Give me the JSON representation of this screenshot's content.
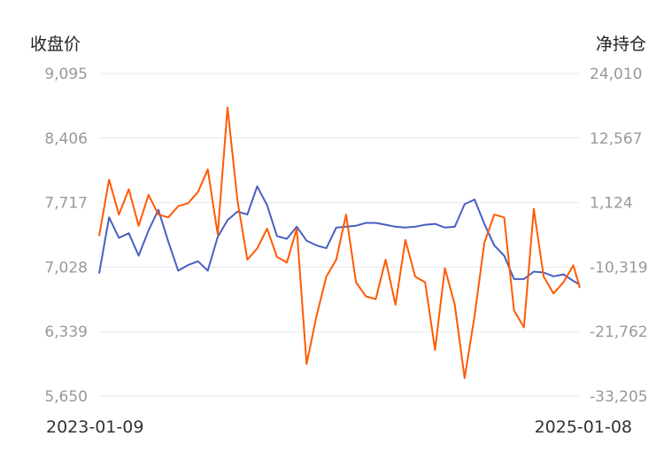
{
  "chart_data": {
    "type": "line",
    "title": "",
    "x_range": [
      "2023-01-09",
      "2025-01-08"
    ],
    "x_tick_labels": [
      "2023-01-09",
      "2025-01-08"
    ],
    "y_left": {
      "label": "收盘价",
      "ylim": [
        5650,
        9095
      ],
      "ticks": [
        "9,095",
        "8,406",
        "7,717",
        "7,028",
        "6,339",
        "5,650"
      ],
      "tick_values": [
        9095,
        8406,
        7717,
        7028,
        6339,
        5650
      ]
    },
    "y_right": {
      "label": "净持仓",
      "ylim": [
        -33205,
        24010
      ],
      "ticks": [
        "24,010",
        "12,567",
        "1,124",
        "-10,319",
        "-21,762",
        "-33,205"
      ],
      "tick_values": [
        24010,
        12567,
        1124,
        -10319,
        -21762,
        -33205
      ]
    },
    "grid": true,
    "legend": "none",
    "series": [
      {
        "axis": "left",
        "color": "#4a5fc1",
        "x": [
          "2023-01-09",
          "2023-01-24",
          "2023-02-08",
          "2023-02-23",
          "2023-03-10",
          "2023-03-25",
          "2023-04-09",
          "2023-04-24",
          "2023-05-09",
          "2023-05-24",
          "2023-06-08",
          "2023-06-23",
          "2023-07-08",
          "2023-07-23",
          "2023-08-07",
          "2023-08-22",
          "2023-09-06",
          "2023-09-21",
          "2023-10-06",
          "2023-10-21",
          "2023-11-05",
          "2023-11-20",
          "2023-12-05",
          "2023-12-20",
          "2024-01-04",
          "2024-01-19",
          "2024-02-03",
          "2024-02-18",
          "2024-03-04",
          "2024-03-19",
          "2024-04-03",
          "2024-04-18",
          "2024-05-03",
          "2024-05-18",
          "2024-06-02",
          "2024-06-17",
          "2024-07-02",
          "2024-07-17",
          "2024-08-01",
          "2024-08-16",
          "2024-08-31",
          "2024-09-15",
          "2024-09-30",
          "2024-10-15",
          "2024-10-30",
          "2024-11-14",
          "2024-11-29",
          "2024-12-14",
          "2024-12-29",
          "2025-01-08"
        ],
        "values": [
          6960,
          7560,
          7340,
          7390,
          7150,
          7420,
          7640,
          7300,
          6990,
          7050,
          7090,
          6990,
          7350,
          7530,
          7620,
          7590,
          7890,
          7690,
          7360,
          7330,
          7460,
          7310,
          7260,
          7230,
          7450,
          7460,
          7470,
          7500,
          7500,
          7480,
          7460,
          7450,
          7460,
          7480,
          7490,
          7450,
          7460,
          7700,
          7750,
          7490,
          7260,
          7150,
          6900,
          6900,
          6980,
          6970,
          6930,
          6950,
          6880,
          6840
        ]
      },
      {
        "axis": "right",
        "color": "#ff5a00",
        "x": [
          "2023-01-09",
          "2023-01-24",
          "2023-02-08",
          "2023-02-23",
          "2023-03-10",
          "2023-03-25",
          "2023-04-09",
          "2023-04-24",
          "2023-05-09",
          "2023-05-24",
          "2023-06-08",
          "2023-06-23",
          "2023-07-08",
          "2023-07-23",
          "2023-08-07",
          "2023-08-22",
          "2023-09-06",
          "2023-09-21",
          "2023-10-06",
          "2023-10-21",
          "2023-11-05",
          "2023-11-20",
          "2023-12-05",
          "2023-12-20",
          "2024-01-04",
          "2024-01-19",
          "2024-02-03",
          "2024-02-18",
          "2024-03-04",
          "2024-03-19",
          "2024-04-03",
          "2024-04-18",
          "2024-05-03",
          "2024-05-18",
          "2024-06-02",
          "2024-06-17",
          "2024-07-02",
          "2024-07-17",
          "2024-08-01",
          "2024-08-16",
          "2024-08-31",
          "2024-09-15",
          "2024-09-30",
          "2024-10-15",
          "2024-10-30",
          "2024-11-14",
          "2024-11-29",
          "2024-12-14",
          "2024-12-29",
          "2025-01-08"
        ],
        "values": [
          -4800,
          5200,
          -1000,
          3500,
          -3000,
          2500,
          -1000,
          -1500,
          500,
          1000,
          3000,
          7000,
          -4500,
          18000,
          1500,
          -9000,
          -7000,
          -3500,
          -8500,
          -9500,
          -3500,
          -27500,
          -19000,
          -12000,
          -9000,
          -1000,
          -13000,
          -15500,
          -16000,
          -9000,
          -17000,
          -5500,
          -12000,
          -13000,
          -25000,
          -10500,
          -17000,
          -30000,
          -19000,
          -6000,
          -1000,
          -1500,
          -18000,
          -21000,
          0,
          -12000,
          -15000,
          -13000,
          -10000,
          -14000
        ]
      }
    ]
  }
}
